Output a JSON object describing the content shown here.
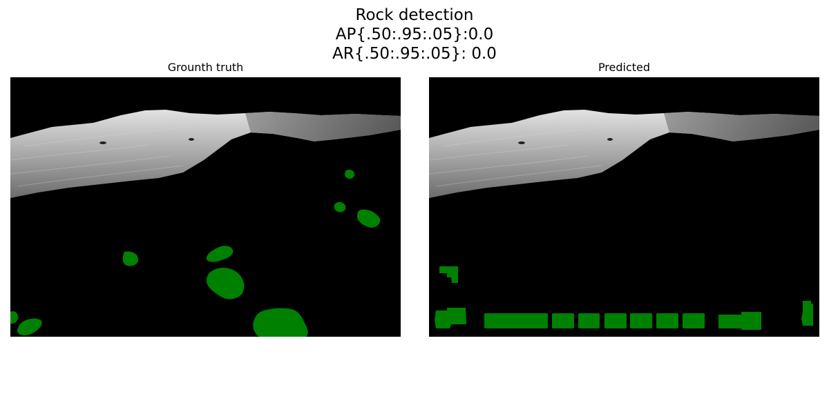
{
  "figure": {
    "title_lines": [
      "Rock detection",
      "AP{.50:.95:.05}:0.0",
      "AR{.50:.95:.05}: 0.0"
    ]
  },
  "panels": {
    "ground_truth": {
      "title": "Grounth truth"
    },
    "predicted": {
      "title": "Predicted"
    }
  },
  "colors": {
    "mask": "#008000",
    "background": "#000000",
    "terrain_light": "#c8c8c8",
    "terrain_dark": "#6e6e6e"
  }
}
